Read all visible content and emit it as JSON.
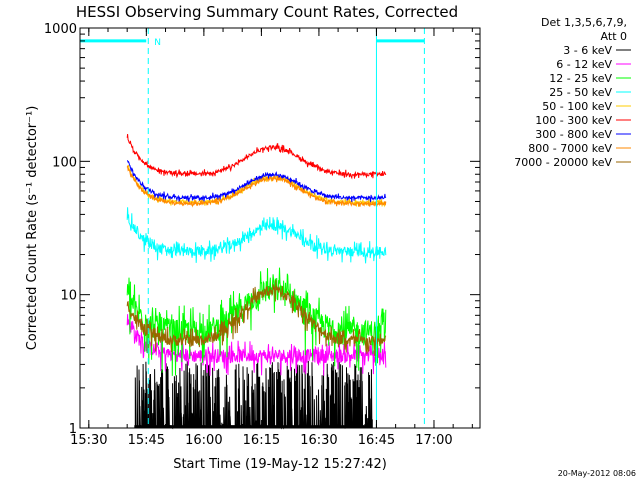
{
  "chart_data": {
    "type": "line",
    "title": "HESSI Observing Summary Count Rates, Corrected",
    "xlabel": "Start Time (19-May-12 15:27:42)",
    "ylabel": "Corrected Count Rate (s⁻¹ detector⁻¹)",
    "x_ticks": [
      "15:30",
      "15:45",
      "16:00",
      "16:15",
      "16:30",
      "16:45",
      "17:00"
    ],
    "x_tick_minutes": [
      930,
      945,
      960,
      975,
      990,
      1005,
      1020
    ],
    "xlim_minutes": [
      927.7,
      1032
    ],
    "y_scale": "log",
    "ylim": [
      1,
      1000
    ],
    "y_ticks": [
      "1",
      "10",
      "100",
      "1000"
    ],
    "legend_title": [
      "Det 1,3,5,6,7,9,",
      "Att 0"
    ],
    "legend_position": "right-top, outside plot",
    "date_stamp": "20-May-2012 08:06",
    "series": [
      {
        "name": "3 - 6 keV",
        "color": "#000000",
        "level": 1.6,
        "bump": 1.0,
        "noise": 1.0
      },
      {
        "name": "6 - 12 keV",
        "color": "#ff00ff",
        "level": 3.5,
        "bump": 1.0,
        "noise": 0.12
      },
      {
        "name": "12 - 25 keV",
        "color": "#00ff00",
        "level": 5.3,
        "bump": 2.1,
        "noise": 0.22
      },
      {
        "name": "25 - 50 keV",
        "color": "#00ffff",
        "level": 21,
        "bump": 1.55,
        "noise": 0.08
      },
      {
        "name": "50 - 100 keV",
        "color": "#ffcc00",
        "level": 49,
        "bump": 1.55,
        "noise": 0.03
      },
      {
        "name": "100 - 300 keV",
        "color": "#ff0000",
        "level": 80,
        "bump": 1.6,
        "noise": 0.03
      },
      {
        "name": "300 - 800 keV",
        "color": "#0000ff",
        "level": 53,
        "bump": 1.5,
        "noise": 0.03
      },
      {
        "name": "800 - 7000 keV",
        "color": "#ff8800",
        "level": 48,
        "bump": 1.55,
        "noise": 0.025
      },
      {
        "name": "7000 - 20000 keV",
        "color": "#996600",
        "level": 4.5,
        "bump": 2.4,
        "noise": 0.1
      }
    ],
    "data_window_minutes": [
      940,
      1007.5
    ],
    "bump_peak_minute": 978,
    "attenuator_state": {
      "label": "N",
      "color": "#00ffff",
      "value": 800
    },
    "vertical_markers_minutes": [
      945.5,
      1005,
      1017.5
    ]
  }
}
